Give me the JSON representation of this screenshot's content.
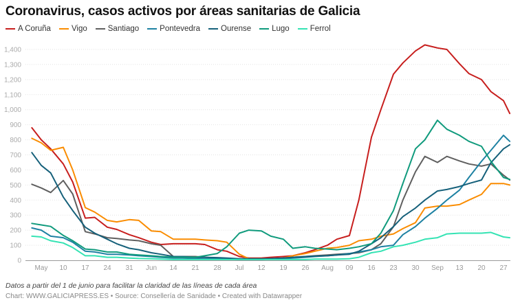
{
  "title": "Coronavirus, casos activos por áreas sanitarias de Galicia",
  "notes": "Datos a partir del 1 de junio para facilitar la claridad de las líneas de cada área",
  "footer": "Chart: WWW.GALICIAPRESS.ES • Source: Consellería de Sanidade • Created with Datawrapper",
  "chart_data": {
    "type": "line",
    "title": "Coronavirus, casos activos por áreas sanitarias de Galicia",
    "xlabel": "",
    "ylabel": "",
    "ylim": [
      0,
      1400
    ],
    "yticks": [
      "0",
      "100",
      "200",
      "300",
      "400",
      "500",
      "600",
      "700",
      "800",
      "900",
      "1,000",
      "1,100",
      "1,200",
      "1,300",
      "1,400"
    ],
    "xticks": [
      {
        "date": "05-03",
        "label": "May"
      },
      {
        "date": "05-10",
        "label": "10"
      },
      {
        "date": "05-17",
        "label": "17"
      },
      {
        "date": "05-24",
        "label": "24"
      },
      {
        "date": "05-31",
        "label": "31"
      },
      {
        "date": "06-07",
        "label": "Jun"
      },
      {
        "date": "06-14",
        "label": "14"
      },
      {
        "date": "06-21",
        "label": "21"
      },
      {
        "date": "06-28",
        "label": "28"
      },
      {
        "date": "07-05",
        "label": "Jul"
      },
      {
        "date": "07-12",
        "label": "12"
      },
      {
        "date": "07-19",
        "label": "19"
      },
      {
        "date": "07-26",
        "label": "26"
      },
      {
        "date": "08-02",
        "label": "Aug"
      },
      {
        "date": "08-09",
        "label": "09"
      },
      {
        "date": "08-16",
        "label": "16"
      },
      {
        "date": "08-23",
        "label": "23"
      },
      {
        "date": "08-30",
        "label": "30"
      },
      {
        "date": "09-06",
        "label": "Sep"
      },
      {
        "date": "09-13",
        "label": "13"
      },
      {
        "date": "09-20",
        "label": "20"
      },
      {
        "date": "09-27",
        "label": "27"
      }
    ],
    "grid": true,
    "legend": "top-left",
    "x": [
      "04-30",
      "05-03",
      "05-06",
      "05-10",
      "05-13",
      "05-17",
      "05-20",
      "05-24",
      "05-27",
      "05-31",
      "06-03",
      "06-07",
      "06-10",
      "06-14",
      "06-17",
      "06-21",
      "06-24",
      "06-28",
      "07-01",
      "07-05",
      "07-08",
      "07-12",
      "07-15",
      "07-19",
      "07-22",
      "07-26",
      "07-29",
      "08-02",
      "08-05",
      "08-09",
      "08-12",
      "08-16",
      "08-19",
      "08-23",
      "08-26",
      "08-30",
      "09-02",
      "09-06",
      "09-09",
      "09-13",
      "09-16",
      "09-20",
      "09-23",
      "09-27",
      "09-29"
    ],
    "series": [
      {
        "name": "A Coruña",
        "color": "#c71e1d",
        "values": [
          880,
          800,
          740,
          640,
          520,
          280,
          285,
          220,
          205,
          170,
          150,
          120,
          105,
          110,
          110,
          110,
          105,
          70,
          60,
          25,
          15,
          15,
          20,
          25,
          30,
          50,
          70,
          100,
          140,
          164,
          400,
          817,
          1000,
          1236,
          1310,
          1390,
          1430,
          1410,
          1400,
          1305,
          1240,
          1200,
          1120,
          1060,
          975
        ]
      },
      {
        "name": "Vigo",
        "color": "#fa8c00",
        "values": [
          810,
          780,
          730,
          750,
          600,
          350,
          320,
          265,
          255,
          270,
          265,
          195,
          190,
          140,
          140,
          140,
          135,
          130,
          120,
          40,
          10,
          10,
          10,
          15,
          30,
          45,
          60,
          80,
          85,
          100,
          130,
          140,
          160,
          175,
          210,
          250,
          347,
          360,
          360,
          370,
          400,
          438,
          510,
          510,
          500
        ]
      },
      {
        "name": "Santiago",
        "color": "#5f5f5f",
        "values": [
          505,
          480,
          450,
          530,
          440,
          190,
          175,
          150,
          145,
          135,
          130,
          110,
          100,
          25,
          25,
          25,
          20,
          15,
          10,
          5,
          5,
          5,
          10,
          15,
          20,
          25,
          30,
          35,
          40,
          45,
          50,
          70,
          110,
          223,
          400,
          588,
          690,
          650,
          690,
          660,
          640,
          625,
          640,
          565,
          533
        ]
      },
      {
        "name": "Pontevedra",
        "color": "#1d81a2",
        "values": [
          215,
          200,
          160,
          150,
          120,
          60,
          55,
          40,
          40,
          35,
          30,
          25,
          20,
          15,
          15,
          12,
          10,
          10,
          8,
          5,
          5,
          5,
          8,
          10,
          15,
          20,
          25,
          30,
          35,
          45,
          55,
          70,
          90,
          100,
          170,
          224,
          280,
          345,
          400,
          466,
          550,
          657,
          730,
          830,
          790
        ]
      },
      {
        "name": "Ourense",
        "color": "#15607a",
        "values": [
          715,
          630,
          580,
          420,
          330,
          220,
          180,
          140,
          110,
          80,
          70,
          50,
          40,
          25,
          25,
          20,
          20,
          18,
          15,
          10,
          10,
          10,
          12,
          15,
          20,
          25,
          28,
          30,
          35,
          40,
          60,
          110,
          150,
          224,
          290,
          347,
          400,
          460,
          470,
          490,
          510,
          533,
          648,
          740,
          767
        ]
      },
      {
        "name": "Lugo",
        "color": "#0f9a7c",
        "values": [
          245,
          235,
          225,
          165,
          130,
          75,
          70,
          55,
          55,
          40,
          35,
          30,
          25,
          20,
          20,
          20,
          30,
          45,
          90,
          180,
          200,
          195,
          160,
          140,
          80,
          90,
          80,
          75,
          70,
          80,
          90,
          110,
          180,
          330,
          510,
          740,
          800,
          930,
          870,
          830,
          790,
          757,
          657,
          550,
          537
        ]
      },
      {
        "name": "Ferrol",
        "color": "#33e3b3",
        "values": [
          160,
          155,
          130,
          115,
          85,
          30,
          30,
          20,
          20,
          15,
          12,
          10,
          8,
          5,
          5,
          5,
          5,
          5,
          5,
          5,
          5,
          5,
          5,
          5,
          5,
          5,
          8,
          8,
          8,
          10,
          20,
          50,
          60,
          90,
          100,
          120,
          140,
          150,
          175,
          180,
          180,
          180,
          185,
          155,
          150
        ]
      }
    ]
  }
}
